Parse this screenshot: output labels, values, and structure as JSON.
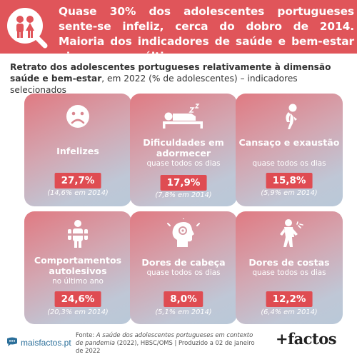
{
  "header": {
    "headline": "Quase 30% dos adolescentes portugueses sente-se infeliz, cerca do dobro de 2014. Maioria dos indicadores de saúde e bem-estar pioraram nos últimos anos."
  },
  "subtitle": {
    "bold": "Retrato dos adolescentes portugueses relativamente à dimensão saúde e bem-estar",
    "rest": ", em 2022 (% de adolescentes) – indicadores selecionados"
  },
  "chart_data": {
    "type": "table",
    "year": "2022",
    "comparison_year": "2014",
    "indicators": [
      {
        "title": "Infelizes",
        "note": "",
        "value": "27,7%",
        "prev": "(14,6% em 2014)",
        "value_num": 27.7,
        "prev_num": 14.6
      },
      {
        "title": "Dificuldades em adormecer",
        "note": "quase todos os dias",
        "value": "17,9%",
        "prev": "(7,8% em 2014)",
        "value_num": 17.9,
        "prev_num": 7.8
      },
      {
        "title": "Cansaço e exaustão",
        "note": "quase todos os dias",
        "value": "15,8%",
        "prev": "(5,9% em 2014)",
        "value_num": 15.8,
        "prev_num": 5.9
      },
      {
        "title": "Comportamentos autolesivos",
        "note": "no último ano",
        "value": "24,6%",
        "prev": "(20,3% em 2014)",
        "value_num": 24.6,
        "prev_num": 20.3
      },
      {
        "title": "Dores de cabeça",
        "note": "quase todos os dias",
        "value": "8,0%",
        "prev": "(5,1% em 2014)",
        "value_num": 8.0,
        "prev_num": 5.1
      },
      {
        "title": "Dores de costas",
        "note": "quase todos os dias",
        "value": "12,2%",
        "prev": "(6,4% em 2014)",
        "value_num": 12.2,
        "prev_num": 6.4
      }
    ]
  },
  "footer": {
    "site": "maisfactos.pt",
    "source_label": "Fonte: ",
    "source_title": "A saúde dos adolescentes portugueses em contexto de pandemia",
    "source_rest": " (2022), HBSC/OMS | Produzido a 02 de janeiro de 2022",
    "brand": "+factos"
  },
  "colors": {
    "accent": "#e0555a",
    "value_box": "#df4c52",
    "site_link": "#2b6f9a"
  }
}
